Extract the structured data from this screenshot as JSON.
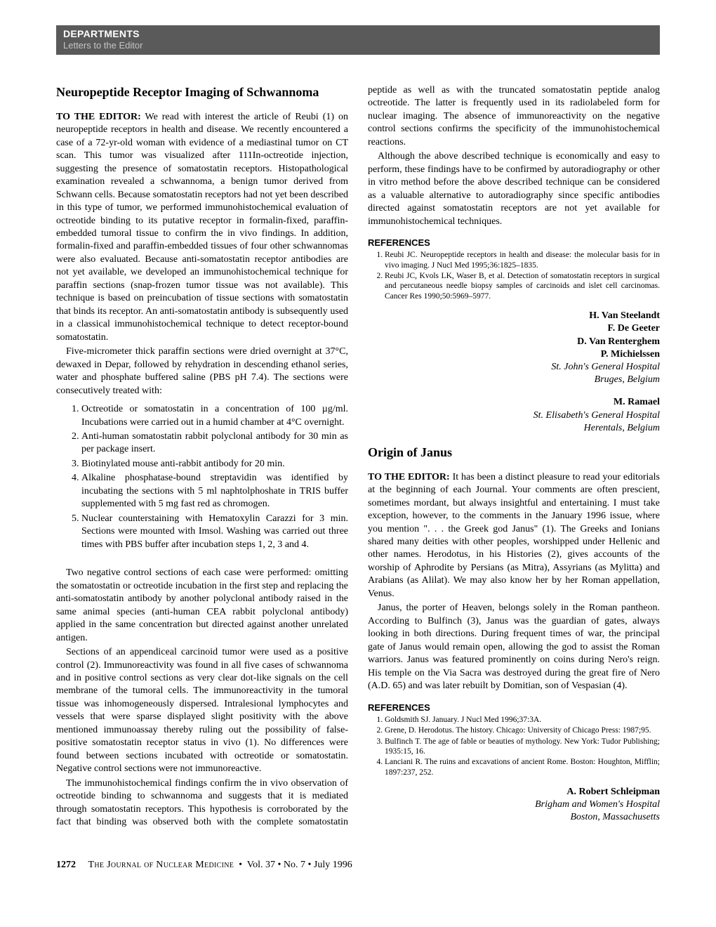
{
  "banner": {
    "dept": "DEPARTMENTS",
    "sub": "Letters to the Editor"
  },
  "article1": {
    "title": "Neuropeptide Receptor Imaging of Schwannoma",
    "lead": "TO THE EDITOR:",
    "p1": " We read with interest the article of Reubi (1) on neuropeptide receptors in health and disease. We recently encountered a case of a 72-yr-old woman with evidence of a mediastinal tumor on CT scan. This tumor was visualized after 111In-octreotide injection, suggesting the presence of somatostatin receptors. Histopathological examination revealed a schwannoma, a benign tumor derived from Schwann cells. Because somatostatin receptors had not yet been described in this type of tumor, we performed immunohistochemical evaluation of octreotide binding to its putative receptor in formalin-fixed, paraffin-embedded tumoral tissue to confirm the in vivo findings. In addition, formalin-fixed and paraffin-embedded tissues of four other schwannomas were also evaluated. Because anti-somatostatin receptor antibodies are not yet available, we developed an immunohistochemical technique for paraffin sections (snap-frozen tumor tissue was not available). This technique is based on preincubation of tissue sections with somatostatin that binds its receptor. An anti-somatostatin antibody is subsequently used in a classical immunohistochemical technique to detect receptor-bound somatostatin.",
    "p2": "Five-micrometer thick paraffin sections were dried overnight at 37°C, dewaxed in Depar, followed by rehydration in descending ethanol series, water and phosphate buffered saline (PBS pH 7.4). The sections were consecutively treated with:",
    "protocol": [
      "Octreotide or somatostatin in a concentration of 100 µg/ml. Incubations were carried out in a humid chamber at 4°C overnight.",
      "Anti-human somatostatin rabbit polyclonal antibody for 30 min as per package insert.",
      "Biotinylated mouse anti-rabbit antibody for 20 min.",
      "Alkaline phosphatase-bound streptavidin was identified by incubating the sections with 5 ml naphtolphoshate in TRIS buffer supplemented with 5 mg fast red as chromogen.",
      "Nuclear counterstaining with Hematoxylin Carazzi for 3 min. Sections were mounted with Imsol. Washing was carried out three times with PBS buffer after incubation steps 1, 2, 3 and 4."
    ],
    "p3": "Two negative control sections of each case were performed: omitting the somatostatin or octreotide incubation in the first step and replacing the anti-somatostatin antibody by another polyclonal antibody raised in the same animal species (anti-human CEA rabbit polyclonal antibody) applied in the same concentration but directed against another unrelated antigen.",
    "p4": "Sections of an appendiceal carcinoid tumor were used as a positive control (2). Immunoreactivity was found in all five cases of schwannoma and in positive control sections as very clear dot-like signals on the cell membrane of the tumoral cells. The immunoreactivity in the tumoral tissue was inhomogeneously dispersed. Intralesional lymphocytes and vessels that were sparse displayed slight positivity with the above mentioned immunoassay thereby ruling out the possibility of false-positive somatostatin receptor status in vivo (1). No differences were found between sections incubated with octreotide or somatostatin. Negative control sections were not immunoreactive.",
    "p5": "The immunohistochemical findings confirm the in vivo observation of octreotide binding to schwannoma and suggests that it is mediated through somatostatin receptors. This hypothesis is corroborated by the fact that binding was observed both with the complete somatostatin peptide as well as with the truncated somatostatin peptide analog octreotide. The latter is frequently used in its radiolabeled form for nuclear imaging. The absence of immunoreactivity on the negative control sections confirms the specificity of the immunohistochemical reactions.",
    "p6": "Although the above described technique is economically and easy to perform, these findings have to be confirmed by autoradiography or other in vitro method before the above described technique can be considered as a valuable alternative to autoradiography since specific antibodies directed against somatostatin receptors are not yet available for immunohistochemical techniques.",
    "refs_head": "REFERENCES",
    "refs": [
      "Reubi JC. Neuropeptide receptors in health and disease: the molecular basis for in vivo imaging. J Nucl Med 1995;36:1825–1835.",
      "Reubi JC, Kvols LK, Waser B, et al. Detection of somatostatin receptors in surgical and percutaneous needle biopsy samples of carcinoids and islet cell carcinomas. Cancer Res 1990;50:5969–5977."
    ],
    "sig1": {
      "names": [
        "H. Van Steelandt",
        "F. De Geeter",
        "D. Van Renterghem",
        "P. Michielssen"
      ],
      "aff": [
        "St. John's General Hospital",
        "Bruges, Belgium"
      ]
    },
    "sig2": {
      "names": [
        "M. Ramael"
      ],
      "aff": [
        "St. Elisabeth's General Hospital",
        "Herentals, Belgium"
      ]
    }
  },
  "article2": {
    "title": "Origin of Janus",
    "lead": "TO THE EDITOR:",
    "p1": " It has been a distinct pleasure to read your editorials at the beginning of each Journal. Your comments are often prescient, sometimes mordant, but always insightful and entertaining. I must take exception, however, to the comments in the January 1996 issue, where you mention \". . . the Greek god Janus\" (1). The Greeks and Ionians shared many deities with other peoples, worshipped under Hellenic and other names. Herodotus, in his Histories (2), gives accounts of the worship of Aphrodite by Persians (as Mitra), Assyrians (as Mylitta) and Arabians (as Alilat). We may also know her by her Roman appellation, Venus.",
    "p2": "Janus, the porter of Heaven, belongs solely in the Roman pantheon. According to Bulfinch (3), Janus was the guardian of gates, always looking in both directions. During frequent times of war, the principal gate of Janus would remain open, allowing the god to assist the Roman warriors. Janus was featured prominently on coins during Nero's reign. His temple on the Via Sacra was destroyed during the great fire of Nero (A.D. 65) and was later rebuilt by Domitian, son of Vespasian (4).",
    "refs_head": "REFERENCES",
    "refs": [
      "Goldsmith SJ. January. J Nucl Med 1996;37:3A.",
      "Grene, D. Herodotus. The history. Chicago: University of Chicago Press: 1987;95.",
      "Bulfinch T. The age of fable or beauties of mythology. New York: Tudor Publishing; 1935:15, 16.",
      "Lanciani R. The ruins and excavations of ancient Rome. Boston: Houghton, Mifflin; 1897:237, 252."
    ],
    "sig": {
      "names": [
        "A. Robert Schleipman"
      ],
      "aff": [
        "Brigham and Women's Hospital",
        "Boston, Massachusetts"
      ]
    }
  },
  "footer": {
    "page": "1272",
    "journal": "The Journal of Nuclear Medicine",
    "issue": "Vol. 37 • No. 7 • July 1996"
  }
}
